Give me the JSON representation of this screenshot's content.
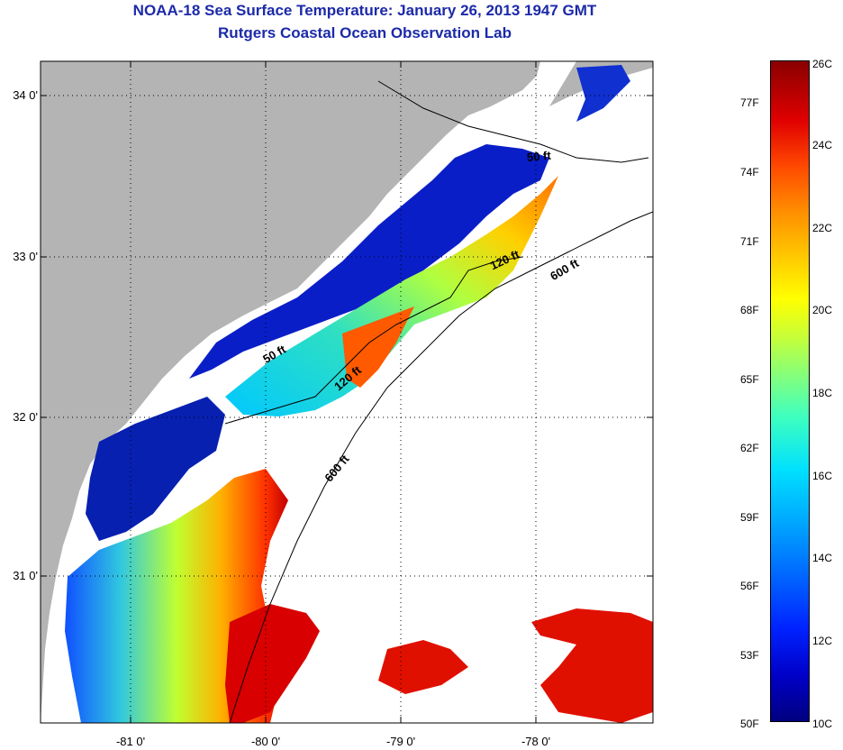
{
  "title": {
    "line1": "NOAA-18 Sea Surface Temperature:  January 26, 2013 1947 GMT",
    "line2": "Rutgers Coastal Ocean Observation Lab"
  },
  "axes": {
    "latitude_ticks": [
      "34 0'",
      "33 0'",
      "32 0'",
      "31 0'"
    ],
    "longitude_ticks": [
      "-81 0'",
      "-80 0'",
      "-79 0'",
      "-78 0'"
    ]
  },
  "contours": [
    {
      "label": "50 ft"
    },
    {
      "label": "50 ft"
    },
    {
      "label": "120 ft"
    },
    {
      "label": "120 ft"
    },
    {
      "label": "600 ft"
    },
    {
      "label": "600 ft"
    }
  ],
  "colorbar": {
    "fahrenheit_ticks": [
      "77F",
      "74F",
      "71F",
      "68F",
      "65F",
      "62F",
      "59F",
      "56F",
      "53F",
      "50F"
    ],
    "celsius_ticks": [
      "26C",
      "24C",
      "22C",
      "20C",
      "18C",
      "16C",
      "14C",
      "12C",
      "10C"
    ],
    "range_c": [
      10,
      26
    ]
  },
  "colors": {
    "title": "#1c2aa8",
    "land": "#b4b4b4",
    "no_data": "#ffffff",
    "cold": "#000080",
    "warm": "#8a0000"
  }
}
